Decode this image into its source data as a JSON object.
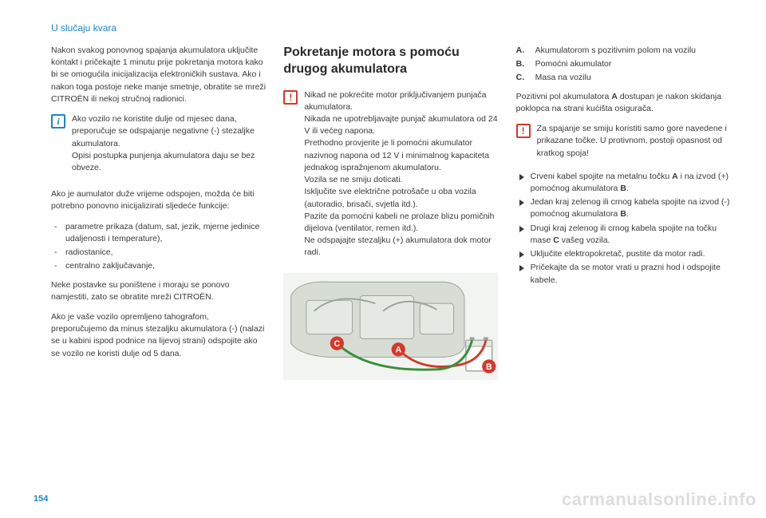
{
  "meta": {
    "page_number": "154",
    "section_title": "U slučaju kvara",
    "watermark": "carmanualsonline.info"
  },
  "colors": {
    "accent": "#1a86c8",
    "warn": "#d23a2a",
    "text": "#3a3a3a",
    "bg": "#ffffff"
  },
  "col1": {
    "p1": "Nakon svakog ponovnog spajanja akumulatora uključite kontakt i pričekajte 1 minutu prije pokretanja motora kako bi se omogućila inicijalizacija elektroničkih sustava. Ako i nakon toga postoje neke manje smetnje, obratite se mreži CITROËN ili nekoj stručnoj radionici.",
    "info": {
      "p1": "Ako vozilo ne koristite dulje od mjesec dana, preporučuje se odspajanje negativne (-) stezaljke akumulatora.",
      "p2": "Opisi postupka punjenja akumulatora daju se bez obveze."
    },
    "p2": "Ako je aumulator duže vrijeme odspojen, možda će biti potrebno ponovno inicijalizirati sljedeće funkcije:",
    "list": [
      "parametre prikaza (datum, sat, jezik, mjerne jedinice udaljenosti i temperature),",
      "radiostanice,",
      "centralno zaključavanje,"
    ],
    "p3": "Neke postavke su poništene i moraju se ponovo namjestiti, zato se obratite mreži CITROËN.",
    "p4": "Ako je vaše vozilo opremljeno tahografom, preporučujemo da minus stezaljku akumulatora (-) (nalazi se u kabini ispod podnice na lijevoj strani) odspojite ako se vozilo ne koristi dulje od 5 dana."
  },
  "col2": {
    "title": "Pokretanje motora s pomoću drugog akumulatora",
    "warn": {
      "p1": "Nikad ne pokrećite motor priključivanjem punjača akumulatora.",
      "p2": "Nikada ne upotrebljavajte punjač akumulatora od 24 V ili većeg napona.",
      "p3": "Prethodno provjerite je li pomoćni akumulator nazivnog napona od 12 V i minimalnog kapaciteta jednakog ispražnjenom akumulatoru.",
      "p4": "Vozila se ne smiju doticati.",
      "p5": "Isključite sve električne potrošače u oba vozila (autoradio, brisači, svjetla itd.).",
      "p6": "Pazite da pomoćni kabeli ne prolaze blizu pomičnih dijelova (ventilator, remen itd.).",
      "p7": "Ne odspajajte stezaljku (+) akumulatora dok motor radi."
    },
    "illustration": {
      "type": "engine-jumpstart-diagram",
      "background": "#f2f4f2",
      "engine_cover": "#d7dcd4",
      "engine_stroke": "#9aa39a",
      "cable_red": "#d23a2a",
      "cable_green": "#3a8f3a",
      "battery_body": "#ffffff",
      "battery_stroke": "#9aa39a",
      "labels": {
        "A": {
          "text": "A",
          "color": "#d23a2a"
        },
        "B": {
          "text": "B",
          "color": "#d23a2a"
        },
        "C": {
          "text": "C",
          "color": "#d23a2a"
        }
      }
    }
  },
  "col3": {
    "defs": [
      {
        "k": "A.",
        "v": "Akumulatorom s pozitivnim polom na vozilu"
      },
      {
        "k": "B.",
        "v": "Pomoćni akumulator"
      },
      {
        "k": "C.",
        "v": "Masa na vozilu"
      }
    ],
    "p1_pre": "Pozitivni pol akumulatora ",
    "p1_bold": "A",
    "p1_post": " dostupan je nakon skidanja poklopca na strani kućišta osigurača.",
    "warn": {
      "p1": "Za spajanje se smiju koristiti samo gore navedene i prikazane točke. U protivnom, postoji opasnost od kratkog spoja!"
    },
    "steps_html": [
      "Crveni kabel spojite na metalnu točku <span class=\"strong\">A</span> i na izvod (+) pomoćnog akumulatora <span class=\"strong\">B</span>.",
      "Jedan kraj zelenog ili crnog kabela spojite na izvod (-) pomoćnog akumulatora <span class=\"strong\">B</span>.",
      "Drugi kraj zelenog ili crnog kabela spojite na točku mase <span class=\"strong\">C</span> vašeg vozila.",
      "Uključite elektropokretač, pustite da motor radi.",
      "Pričekajte da se motor vrati u prazni hod i odspojite kabele."
    ]
  }
}
